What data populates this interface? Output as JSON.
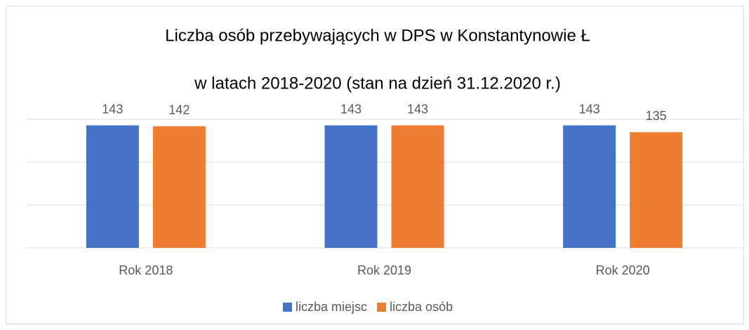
{
  "chart_data": {
    "type": "bar",
    "title": "Liczba osób przebywających w DPS w Konstantynowie Ł",
    "subtitle": "w latach 2018-2020 (stan na dzień 31.12.2020 r.)",
    "categories": [
      "Rok 2018",
      "Rok 2019",
      "Rok 2020"
    ],
    "series": [
      {
        "name": "liczba miejsc",
        "color": "#4472c4",
        "values": [
          143,
          143,
          143
        ]
      },
      {
        "name": "liczba osób",
        "color": "#ed7d31",
        "values": [
          142,
          143,
          135
        ]
      }
    ],
    "ylim": [
      0,
      150
    ],
    "yticks": [
      0,
      50,
      100,
      150
    ],
    "grid": true,
    "legend": "bottom"
  }
}
